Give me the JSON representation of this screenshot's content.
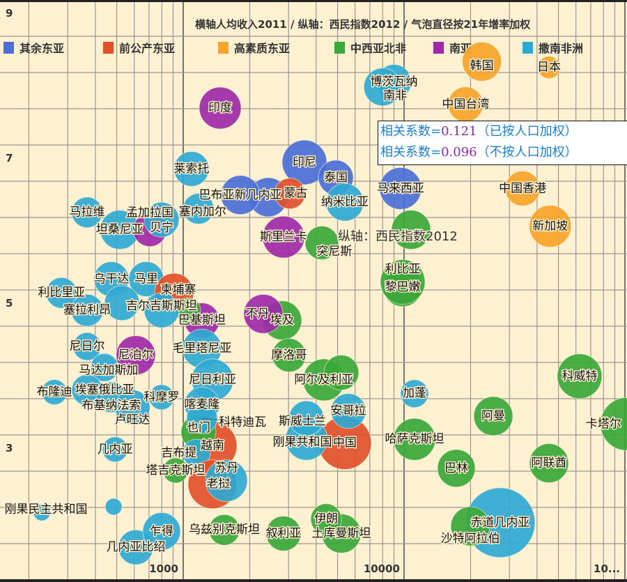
{
  "chart_data": {
    "type": "scatter",
    "title": "横轴人均收入2011 / 纵轴：西民指数2012 / 气泡直径按21年增率加权",
    "ylabel": "纵轴：西民指数2012",
    "x_scale": "log",
    "xlim": [
      150,
      102000
    ],
    "ylim": [
      1,
      9
    ],
    "x_ticks": [
      "1000",
      "10000",
      "10..."
    ],
    "y_ticks": [
      "9",
      "7",
      "5",
      "3"
    ],
    "grid": true,
    "legend_position": "top-left",
    "groups": [
      {
        "name": "其余东亚",
        "color": "#4a6fd6"
      },
      {
        "name": "前公产东亚",
        "color": "#e0502a"
      },
      {
        "name": "高素质东亚",
        "color": "#f7a428"
      },
      {
        "name": "中西亚北非",
        "color": "#3aa83a"
      },
      {
        "name": "南亚",
        "color": "#9e2aa8"
      },
      {
        "name": "撒南非洲",
        "color": "#2fa9d2"
      }
    ],
    "correlation": [
      {
        "prefix": "相关系数=",
        "value": "0.121",
        "suffix": "（已按人口加权）"
      },
      {
        "prefix": "相关系数=",
        "value": "0.096",
        "suffix": "（不按人口加权）"
      }
    ],
    "points": [
      {
        "name": "韩国",
        "group": 2,
        "x": 22500,
        "y": 8.15,
        "size": 28
      },
      {
        "name": "日本",
        "group": 2,
        "x": 45300,
        "y": 8.07,
        "size": 16
      },
      {
        "name": "中国台湾",
        "group": 2,
        "x": 19000,
        "y": 7.56,
        "size": 25
      },
      {
        "name": "博茨瓦纳",
        "group": 5,
        "x": 9000,
        "y": 7.87,
        "size": 25
      },
      {
        "name": "南非",
        "group": 5,
        "x": 8000,
        "y": 7.8,
        "size": 27
      },
      {
        "name": "印度",
        "group": 4,
        "x": 1470,
        "y": 7.51,
        "size": 30
      },
      {
        "name": "印尼",
        "group": 0,
        "x": 3540,
        "y": 6.76,
        "size": 32
      },
      {
        "name": "泰国",
        "group": 0,
        "x": 4910,
        "y": 6.55,
        "size": 25
      },
      {
        "name": "马来西亚",
        "group": 0,
        "x": 9640,
        "y": 6.4,
        "size": 30
      },
      {
        "name": "中国香港",
        "group": 2,
        "x": 34400,
        "y": 6.4,
        "size": 25
      },
      {
        "name": "新加坡",
        "group": 2,
        "x": 45900,
        "y": 5.88,
        "size": 30
      },
      {
        "name": "",
        "group": 0,
        "x": 2425,
        "y": 6.28,
        "size": 28
      },
      {
        "name": "巴布亚新几内亚",
        "group": 0,
        "x": 1815,
        "y": 6.31,
        "size": 28
      },
      {
        "name": "蒙古",
        "group": 1,
        "x": 3040,
        "y": 6.33,
        "size": 22
      },
      {
        "name": "莱索托",
        "group": 5,
        "x": 1090,
        "y": 6.67,
        "size": 25
      },
      {
        "name": "纳米比亚",
        "group": 5,
        "x": 5390,
        "y": 6.21,
        "size": 27
      },
      {
        "name": "斯里兰卡",
        "group": 4,
        "x": 2845,
        "y": 5.73,
        "size": 30
      },
      {
        "name": "突尼斯",
        "group": 3,
        "x": 4245,
        "y": 5.65,
        "size": 24
      },
      {
        "name": "",
        "group": 3,
        "x": 10760,
        "y": 5.83,
        "size": 28
      },
      {
        "name": "马拉维",
        "group": 5,
        "x": 367,
        "y": 6.07,
        "size": 22
      },
      {
        "name": "坦桑尼亚",
        "group": 5,
        "x": 516,
        "y": 5.83,
        "size": 28
      },
      {
        "name": "孟加拉国",
        "group": 4,
        "x": 706,
        "y": 5.83,
        "size": 24
      },
      {
        "name": "贝宁",
        "group": 5,
        "x": 798,
        "y": 5.97,
        "size": 25
      },
      {
        "name": "塞内加尔",
        "group": 5,
        "x": 1173,
        "y": 6.12,
        "size": 22
      },
      {
        "name": "黎巴嫩",
        "group": 3,
        "x": 9860,
        "y": 5.04,
        "size": 28
      },
      {
        "name": "利比亚",
        "group": 3,
        "x": 9860,
        "y": 5.11,
        "size": 32
      },
      {
        "name": "乌干达",
        "group": 5,
        "x": 473,
        "y": 5.15,
        "size": 25
      },
      {
        "name": "马里",
        "group": 5,
        "x": 680,
        "y": 5.15,
        "size": 25
      },
      {
        "name": "柬埔寨",
        "group": 1,
        "x": 910,
        "y": 4.96,
        "size": 28
      },
      {
        "name": "利比里亚",
        "group": 5,
        "x": 281,
        "y": 4.96,
        "size": 22
      },
      {
        "name": "塞拉利昂",
        "group": 5,
        "x": 367,
        "y": 4.72,
        "size": 23
      },
      {
        "name": "",
        "group": 5,
        "x": 528,
        "y": 4.82,
        "size": 25
      },
      {
        "name": "巴基斯坦",
        "group": 4,
        "x": 1216,
        "y": 4.58,
        "size": 25
      },
      {
        "name": "",
        "group": 3,
        "x": 1052,
        "y": 4.72,
        "size": 18
      },
      {
        "name": "吉尔吉斯斯坦",
        "group": 5,
        "x": 798,
        "y": 4.72,
        "size": 25
      },
      {
        "name": "埃及",
        "group": 3,
        "x": 2805,
        "y": 4.58,
        "size": 28
      },
      {
        "name": "不丹",
        "group": 4,
        "x": 2305,
        "y": 4.67,
        "size": 28
      },
      {
        "name": "尼日尔",
        "group": 5,
        "x": 367,
        "y": 4.22,
        "size": 20
      },
      {
        "name": "尼泊尔",
        "group": 4,
        "x": 610,
        "y": 4.1,
        "size": 28
      },
      {
        "name": "毛里塔尼亚",
        "group": 5,
        "x": 1216,
        "y": 4.19,
        "size": 28
      },
      {
        "name": "摩洛哥",
        "group": 3,
        "x": 3015,
        "y": 4.1,
        "size": 24
      },
      {
        "name": "马达加斯加",
        "group": 5,
        "x": 440,
        "y": 3.93,
        "size": 20
      },
      {
        "name": "阿尔及利亚",
        "group": 3,
        "x": 4335,
        "y": 3.76,
        "size": 30
      },
      {
        "name": "",
        "group": 3,
        "x": 5200,
        "y": 3.86,
        "size": 25
      },
      {
        "name": "尼日利亚",
        "group": 5,
        "x": 1357,
        "y": 3.76,
        "size": 30
      },
      {
        "name": "布隆迪",
        "group": 5,
        "x": 261,
        "y": 3.59,
        "size": 18
      },
      {
        "name": "埃塞俄比亚",
        "group": 5,
        "x": 367,
        "y": 3.62,
        "size": 22
      },
      {
        "name": "布基纳法索",
        "group": 5,
        "x": 473,
        "y": 3.52,
        "size": 22
      },
      {
        "name": "卢旺达",
        "group": 5,
        "x": 589,
        "y": 3.38,
        "size": 25
      },
      {
        "name": "科摩罗",
        "group": 5,
        "x": 798,
        "y": 3.52,
        "size": 18
      },
      {
        "name": "喀麦隆",
        "group": 5,
        "x": 1216,
        "y": 3.42,
        "size": 25
      },
      {
        "name": "越南",
        "group": 1,
        "x": 1357,
        "y": 2.85,
        "size": 35
      },
      {
        "name": "也门",
        "group": 3,
        "x": 1173,
        "y": 3.04,
        "size": 25
      },
      {
        "name": "科特迪瓦",
        "group": 5,
        "x": 1216,
        "y": 3.23,
        "size": 22
      },
      {
        "name": "加蓬",
        "group": 5,
        "x": 11150,
        "y": 3.57,
        "size": 20
      },
      {
        "name": "中国",
        "group": 1,
        "x": 5390,
        "y": 2.89,
        "size": 38
      },
      {
        "name": "刚果共和国",
        "group": 5,
        "x": 3615,
        "y": 2.94,
        "size": 30
      },
      {
        "name": "安哥拉",
        "group": 5,
        "x": 5595,
        "y": 3.33,
        "size": 25
      },
      {
        "name": "斯威士兰",
        "group": 5,
        "x": 3615,
        "y": 3.23,
        "size": 25
      },
      {
        "name": "哈萨克斯坦",
        "group": 3,
        "x": 11150,
        "y": 2.94,
        "size": 30
      },
      {
        "name": "阿曼",
        "group": 3,
        "x": 25350,
        "y": 3.26,
        "size": 28
      },
      {
        "name": "科威特",
        "group": 3,
        "x": 62370,
        "y": 3.81,
        "size": 32
      },
      {
        "name": "卡塔尔",
        "group": 3,
        "x": 102100,
        "y": 3.15,
        "size": 38
      },
      {
        "name": "巴林",
        "group": 3,
        "x": 17250,
        "y": 2.54,
        "size": 27
      },
      {
        "name": "阿联酋",
        "group": 3,
        "x": 45300,
        "y": 2.61,
        "size": 28
      },
      {
        "name": "几内亚",
        "group": 5,
        "x": 491,
        "y": 2.8,
        "size": 18
      },
      {
        "name": "塔吉克斯坦",
        "group": 3,
        "x": 923,
        "y": 2.51,
        "size": 18
      },
      {
        "name": "吉布提",
        "group": 5,
        "x": 1148,
        "y": 2.75,
        "size": 20
      },
      {
        "name": "老挝",
        "group": 1,
        "x": 1357,
        "y": 2.32,
        "size": 35
      },
      {
        "name": "苏丹",
        "group": 5,
        "x": 1570,
        "y": 2.37,
        "size": 30
      },
      {
        "name": "刚果民主共和国",
        "group": 5,
        "x": 229,
        "y": 1.93,
        "size": 12
      },
      {
        "name": "",
        "group": 5,
        "x": 484,
        "y": 2.01,
        "size": 12
      },
      {
        "name": "几内亚比绍",
        "group": 5,
        "x": 610,
        "y": 1.45,
        "size": 25
      },
      {
        "name": "乍得",
        "group": 5,
        "x": 798,
        "y": 1.67,
        "size": 27
      },
      {
        "name": "乌兹别克斯坦",
        "group": 3,
        "x": 1535,
        "y": 1.69,
        "size": 22
      },
      {
        "name": "叙利亚",
        "group": 3,
        "x": 2845,
        "y": 1.64,
        "size": 25
      },
      {
        "name": "土库曼斯坦",
        "group": 3,
        "x": 5200,
        "y": 1.64,
        "size": 28
      },
      {
        "name": "伊朗",
        "group": 3,
        "x": 4435,
        "y": 1.84,
        "size": 22
      },
      {
        "name": "赤道几内亚",
        "group": 5,
        "x": 27230,
        "y": 1.79,
        "size": 50
      },
      {
        "name": "沙特阿拉伯",
        "group": 3,
        "x": 19950,
        "y": 1.74,
        "size": 28
      }
    ]
  }
}
